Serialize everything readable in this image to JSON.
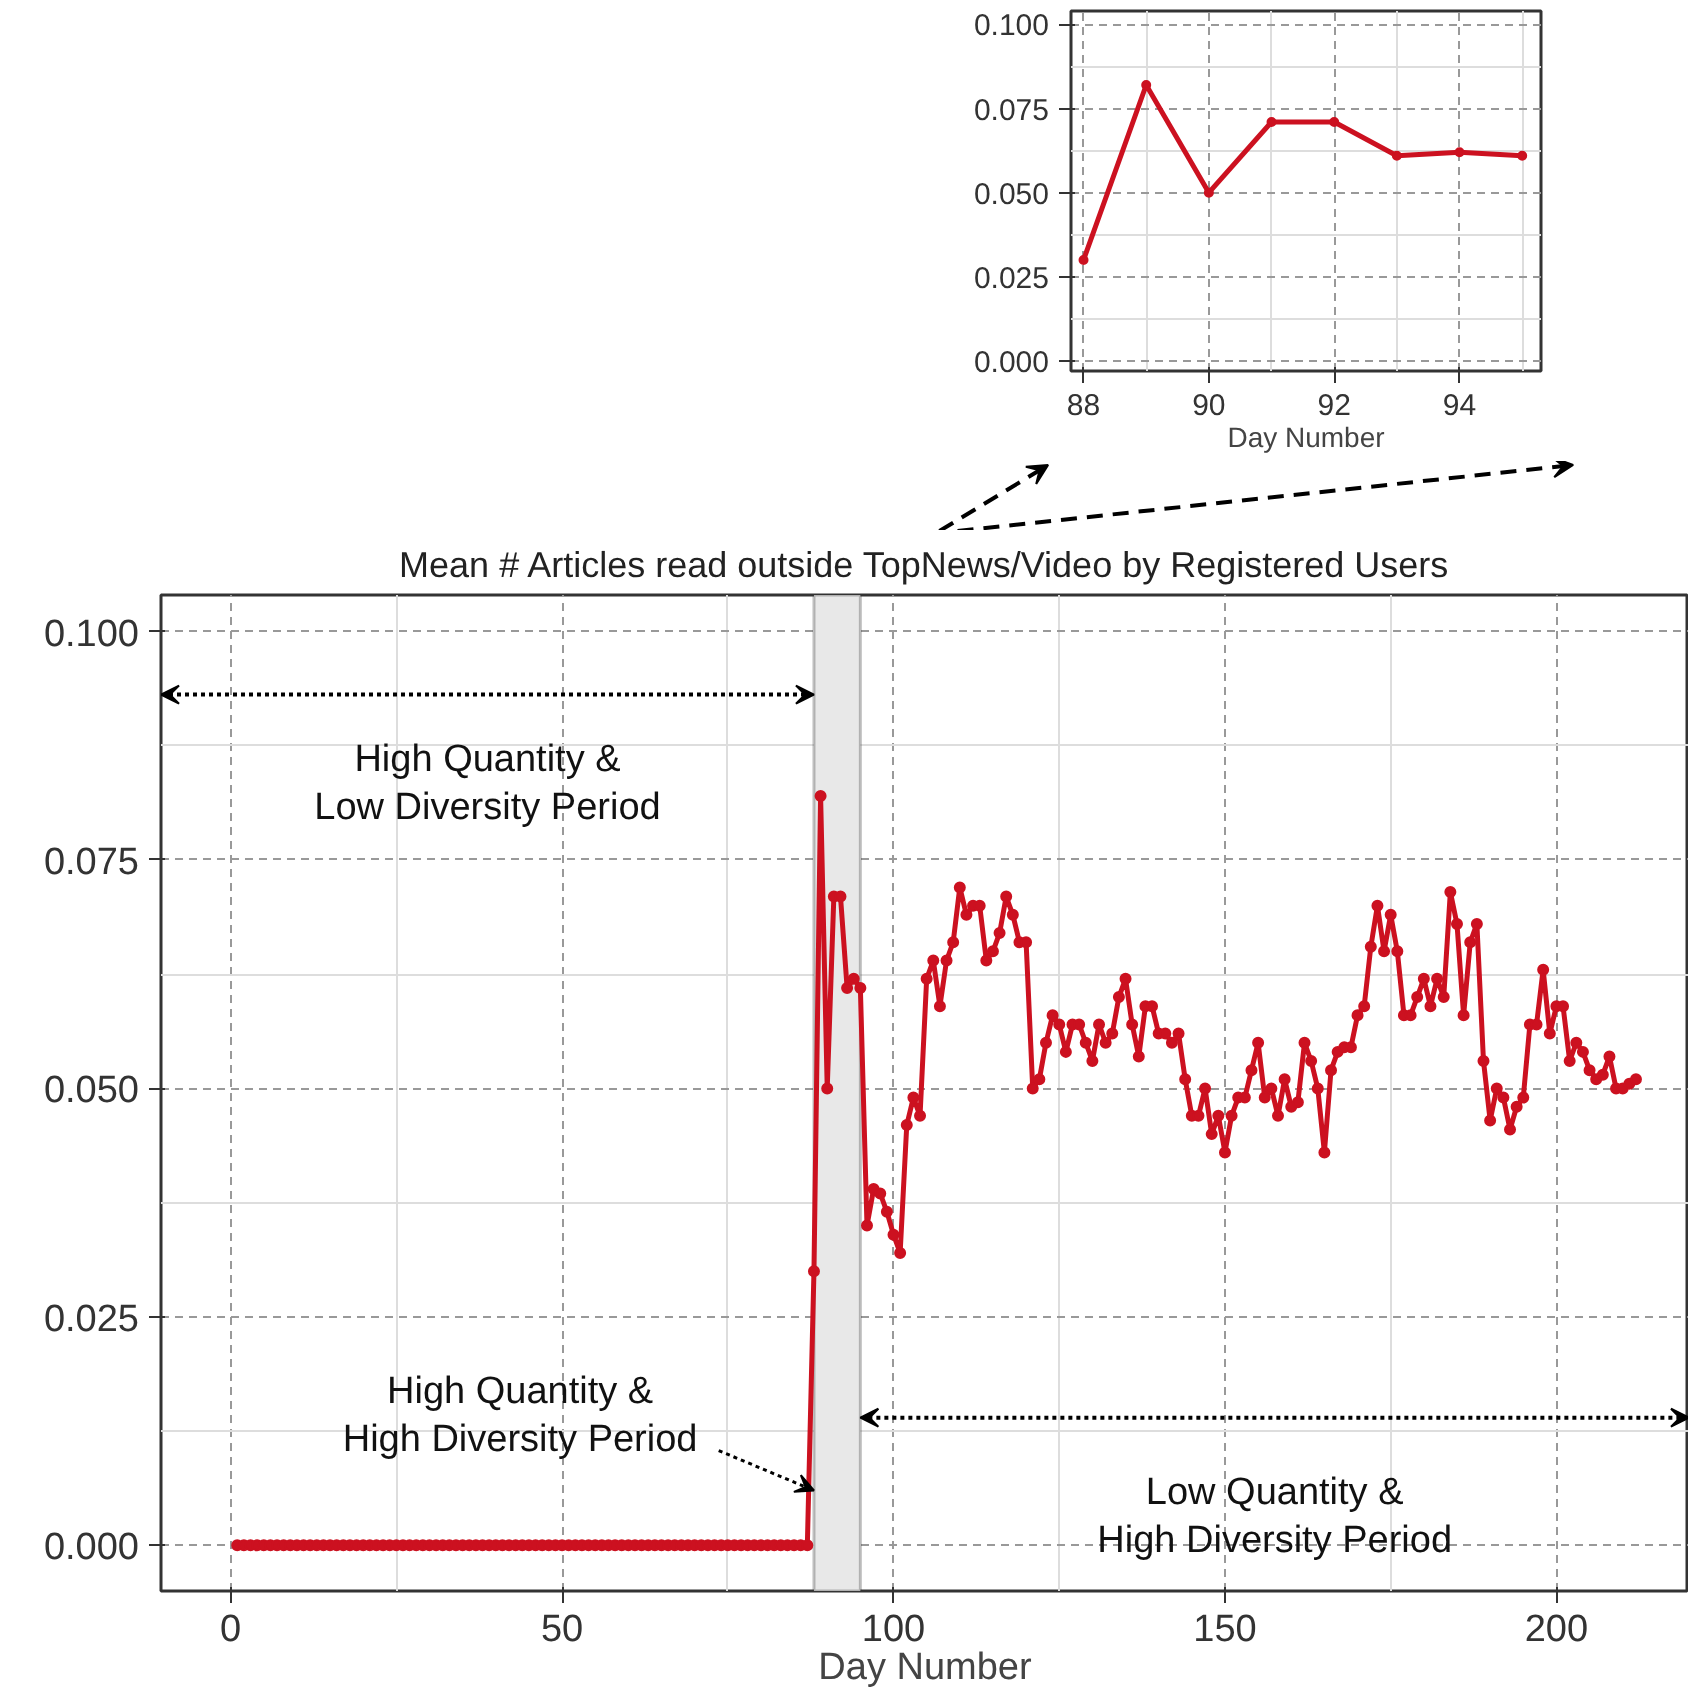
{
  "chart_data": [
    {
      "type": "line",
      "xlabel": "Day Number",
      "x": [
        88,
        89,
        90,
        91,
        92,
        93,
        94,
        95
      ],
      "series": [
        {
          "color": "#cc1120",
          "values": [
            0.03,
            0.082,
            0.05,
            0.071,
            0.071,
            0.061,
            0.062,
            0.061
          ]
        }
      ],
      "xlim": [
        87.8,
        95.3
      ],
      "ylim": [
        -0.003,
        0.104
      ],
      "xticks": [
        88,
        90,
        92,
        94
      ],
      "yticks": [
        {
          "value": 0,
          "label": "0.000"
        },
        {
          "value": 0.025,
          "label": "0.025"
        },
        {
          "value": 0.05,
          "label": "0.050"
        },
        {
          "value": 0.075,
          "label": "0.075"
        },
        {
          "value": 0.1,
          "label": "0.100"
        }
      ],
      "grid": true,
      "marker": "circle",
      "line_style": "solid"
    },
    {
      "type": "line",
      "title": "Mean # Articles read outside TopNews/Video by Registered Users",
      "xlabel": "Day Number",
      "x": [
        1,
        2,
        3,
        4,
        5,
        6,
        7,
        8,
        9,
        10,
        11,
        12,
        13,
        14,
        15,
        16,
        17,
        18,
        19,
        20,
        21,
        22,
        23,
        24,
        25,
        26,
        27,
        28,
        29,
        30,
        31,
        32,
        33,
        34,
        35,
        36,
        37,
        38,
        39,
        40,
        41,
        42,
        43,
        44,
        45,
        46,
        47,
        48,
        49,
        50,
        51,
        52,
        53,
        54,
        55,
        56,
        57,
        58,
        59,
        60,
        61,
        62,
        63,
        64,
        65,
        66,
        67,
        68,
        69,
        70,
        71,
        72,
        73,
        74,
        75,
        76,
        77,
        78,
        79,
        80,
        81,
        82,
        83,
        84,
        85,
        86,
        87,
        88,
        89,
        90,
        91,
        92,
        93,
        94,
        95,
        96,
        97,
        98,
        99,
        100,
        101,
        102,
        103,
        104,
        105,
        106,
        107,
        108,
        109,
        110,
        111,
        112,
        113,
        114,
        115,
        116,
        117,
        118,
        119,
        120,
        121,
        122,
        123,
        124,
        125,
        126,
        127,
        128,
        129,
        130,
        131,
        132,
        133,
        134,
        135,
        136,
        137,
        138,
        139,
        140,
        141,
        142,
        143,
        144,
        145,
        146,
        147,
        148,
        149,
        150,
        151,
        152,
        153,
        154,
        155,
        156,
        157,
        158,
        159,
        160,
        161,
        162,
        163,
        164,
        165,
        166,
        167,
        168,
        169,
        170,
        171,
        172,
        173,
        174,
        175,
        176,
        177,
        178,
        179,
        180,
        181,
        182,
        183,
        184,
        185,
        186,
        187,
        188,
        189,
        190,
        191,
        192,
        193,
        194,
        195,
        196,
        197,
        198,
        199,
        200,
        201,
        202,
        203,
        204,
        205,
        206,
        207,
        208,
        209,
        210,
        211,
        212
      ],
      "series": [
        {
          "color": "#cc1120",
          "values": [
            0,
            0,
            0,
            0,
            0,
            0,
            0,
            0,
            0,
            0,
            0,
            0,
            0,
            0,
            0,
            0,
            0,
            0,
            0,
            0,
            0,
            0,
            0,
            0,
            0,
            0,
            0,
            0,
            0,
            0,
            0,
            0,
            0,
            0,
            0,
            0,
            0,
            0,
            0,
            0,
            0,
            0,
            0,
            0,
            0,
            0,
            0,
            0,
            0,
            0,
            0,
            0,
            0,
            0,
            0,
            0,
            0,
            0,
            0,
            0,
            0,
            0,
            0,
            0,
            0,
            0,
            0,
            0,
            0,
            0,
            0,
            0,
            0,
            0,
            0,
            0,
            0,
            0,
            0,
            0,
            0,
            0,
            0,
            0,
            0,
            0,
            0,
            0.03,
            0.082,
            0.05,
            0.071,
            0.071,
            0.061,
            0.062,
            0.061,
            0.035,
            0.039,
            0.0385,
            0.0365,
            0.034,
            0.032,
            0.046,
            0.049,
            0.047,
            0.062,
            0.064,
            0.059,
            0.064,
            0.066,
            0.072,
            0.069,
            0.07,
            0.07,
            0.064,
            0.065,
            0.067,
            0.071,
            0.069,
            0.066,
            0.066,
            0.05,
            0.051,
            0.055,
            0.058,
            0.057,
            0.054,
            0.057,
            0.057,
            0.055,
            0.053,
            0.057,
            0.055,
            0.056,
            0.06,
            0.062,
            0.057,
            0.0535,
            0.059,
            0.059,
            0.056,
            0.056,
            0.055,
            0.056,
            0.051,
            0.047,
            0.047,
            0.05,
            0.045,
            0.047,
            0.043,
            0.047,
            0.049,
            0.049,
            0.052,
            0.055,
            0.049,
            0.05,
            0.047,
            0.051,
            0.048,
            0.0485,
            0.055,
            0.053,
            0.05,
            0.043,
            0.052,
            0.054,
            0.0545,
            0.0545,
            0.058,
            0.059,
            0.0655,
            0.07,
            0.065,
            0.069,
            0.065,
            0.058,
            0.058,
            0.06,
            0.062,
            0.059,
            0.062,
            0.06,
            0.0715,
            0.068,
            0.058,
            0.066,
            0.068,
            0.053,
            0.0465,
            0.05,
            0.049,
            0.0455,
            0.048,
            0.049,
            0.057,
            0.057,
            0.063,
            0.056,
            0.059,
            0.059,
            0.053,
            0.055,
            0.054,
            0.052,
            0.051,
            0.0515,
            0.0535,
            0.05,
            0.05,
            0.0505,
            0.051
          ]
        }
      ],
      "xlim": [
        -10.5,
        220
      ],
      "ylim": [
        -0.005,
        0.104
      ],
      "xticks": [
        0,
        50,
        100,
        150,
        200
      ],
      "yticks": [
        {
          "value": 0,
          "label": "0.000"
        },
        {
          "value": 0.025,
          "label": "0.025"
        },
        {
          "value": 0.05,
          "label": "0.050"
        },
        {
          "value": 0.075,
          "label": "0.075"
        },
        {
          "value": 0.1,
          "label": "0.100"
        }
      ],
      "grid": true,
      "marker": "circle",
      "line_style": "solid",
      "bands": [
        {
          "axis": "x",
          "from": 88,
          "to": 95,
          "color": "#e8e8e8"
        }
      ],
      "annotations": [
        "High Quantity &\nLow Diversity Period",
        {
          "text": "High Quantity &\nHigh Diversity Period",
          "x": 88,
          "y": 0.006
        },
        "Low Quantity &\nHigh Diversity Period"
      ]
    }
  ]
}
